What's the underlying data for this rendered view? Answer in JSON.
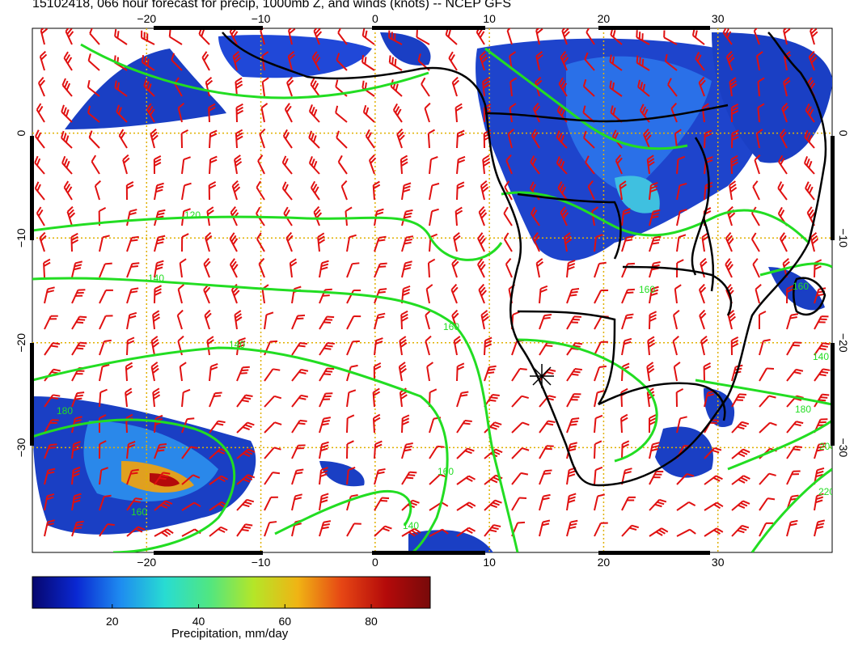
{
  "title": "15102418, 066 hour forecast for precip, 1000mb Z, and winds (knots) -- NCEP GFS",
  "map": {
    "lon_range": [
      -30,
      40
    ],
    "lat_range": [
      -40,
      10
    ],
    "lon_ticks": [
      "−20",
      "−10",
      "0",
      "10",
      "20",
      "30"
    ],
    "lat_ticks": [
      "0",
      "−10",
      "−20",
      "−30"
    ],
    "contour_labels": [
      "120",
      "140",
      "160",
      "140",
      "160",
      "160",
      "180",
      "160",
      "140",
      "160",
      "140",
      "180",
      "200",
      "220"
    ],
    "colors": {
      "precip_low": "#1a3fc4",
      "wind_barb": "#e01010",
      "height_contour": "#22dd22",
      "coast": "#000000",
      "grid": "#e0b000"
    }
  },
  "colorbar": {
    "ticks": [
      "20",
      "40",
      "60",
      "80"
    ],
    "label": "Precipitation, mm/day",
    "stops": [
      "#06066e",
      "#0a28d2",
      "#1e8cf0",
      "#28dcd2",
      "#50e682",
      "#b4e628",
      "#f0b414",
      "#e64614",
      "#b40a0a",
      "#780a0a"
    ]
  }
}
